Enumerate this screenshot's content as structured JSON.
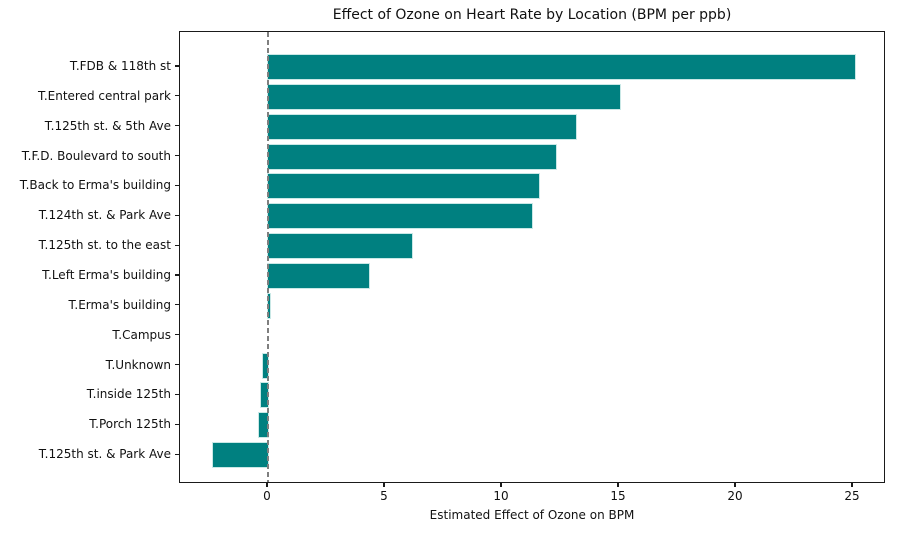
{
  "chart_data": {
    "type": "bar",
    "orientation": "horizontal",
    "title": "Effect of Ozone on Heart Rate by Location (BPM per ppb)",
    "xlabel": "Estimated Effect of Ozone on BPM",
    "ylabel": "",
    "categories": [
      "T.FDB & 118th st",
      "T.Entered central park",
      "T.125th st. & 5th Ave",
      "T.F.D. Boulevard to south",
      "T.Back to Erma's building",
      "T.124th st. & Park Ave",
      "T.125th st. to the east",
      "T.Left Erma's building",
      "T.Erma's building",
      "T.Campus",
      "T.Unknown",
      "T.inside 125th",
      "T.Porch 125th",
      "T.125th st. & Park Ave"
    ],
    "values": [
      25.1,
      15.05,
      13.15,
      12.3,
      11.6,
      11.3,
      6.15,
      4.3,
      0.07,
      0.0,
      -0.2,
      -0.3,
      -0.38,
      -2.35
    ],
    "xticks": [
      0,
      5,
      10,
      15,
      20,
      25
    ],
    "xlim": [
      -3.76,
      26.41
    ],
    "grid": false,
    "legend": null,
    "bar_color": "#008080",
    "bar_edge_color": "#c9e8e6",
    "zero_line_color": "#7f7f7f",
    "axis_color": "#1a1a1a"
  }
}
